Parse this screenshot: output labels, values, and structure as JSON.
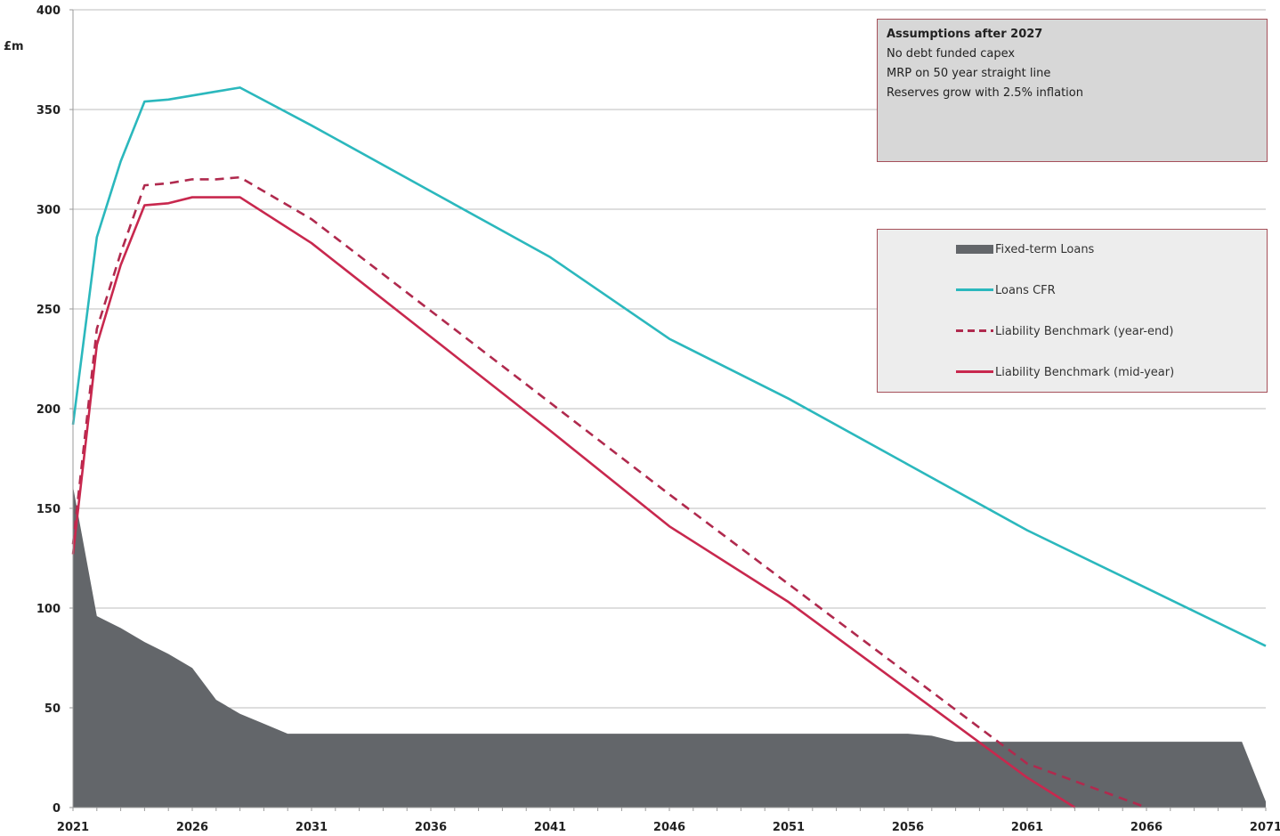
{
  "chart_data": {
    "type": "line",
    "ylabel": "£m",
    "ylim": [
      0,
      400
    ],
    "xlim": [
      2021,
      2071
    ],
    "y_ticks": [
      "0",
      "50",
      "100",
      "150",
      "200",
      "250",
      "300",
      "350",
      "400"
    ],
    "x_ticks": [
      "2021",
      "2026",
      "2031",
      "2036",
      "2041",
      "2046",
      "2051",
      "2056",
      "2061",
      "2066",
      "2071"
    ],
    "grid": true,
    "legend_position": "right",
    "series": [
      {
        "name": "Fixed-term Loans",
        "kind": "area",
        "color": "#63666a",
        "x": [
          2021,
          2022,
          2023,
          2024,
          2025,
          2026,
          2027,
          2028,
          2029,
          2030,
          2031,
          2035,
          2040,
          2045,
          2050,
          2056,
          2057,
          2058,
          2060,
          2065,
          2069,
          2070,
          2071
        ],
        "y": [
          161,
          96,
          90,
          83,
          77,
          70,
          54,
          47,
          42,
          37,
          37,
          37,
          37,
          37,
          37,
          37,
          36,
          33,
          33,
          33,
          33,
          33,
          3
        ]
      },
      {
        "name": "Loans CFR",
        "kind": "line",
        "color": "#2bb8bd",
        "x": [
          2021,
          2022,
          2023,
          2024,
          2025,
          2026,
          2027,
          2028,
          2031,
          2036,
          2041,
          2046,
          2051,
          2056,
          2061,
          2066,
          2071
        ],
        "y": [
          192,
          286,
          324,
          354,
          355,
          357,
          359,
          361,
          342,
          309,
          276,
          235,
          205,
          172,
          139,
          110,
          81
        ]
      },
      {
        "name": "Liability Benchmark (year-end)",
        "kind": "dashed-line",
        "color": "#b02a4e",
        "x": [
          2021,
          2022,
          2023,
          2024,
          2025,
          2026,
          2027,
          2028,
          2031,
          2036,
          2041,
          2046,
          2051,
          2056,
          2061,
          2066
        ],
        "y": [
          132,
          240,
          278,
          312,
          313,
          315,
          315,
          316,
          295,
          249,
          203,
          157,
          112,
          67,
          22,
          0
        ]
      },
      {
        "name": "Liability Benchmark (mid-year)",
        "kind": "line",
        "color": "#c8284e",
        "x": [
          2021,
          2022,
          2023,
          2024,
          2025,
          2026,
          2027,
          2028,
          2031,
          2036,
          2041,
          2046,
          2051,
          2056,
          2061,
          2063
        ],
        "y": [
          127,
          232,
          272,
          302,
          303,
          306,
          306,
          306,
          283,
          236,
          189,
          141,
          103,
          59,
          15,
          0
        ]
      }
    ]
  },
  "assumptions": {
    "title": "Assumptions after 2027",
    "lines": [
      "No debt funded capex",
      "MRP on 50 year straight line",
      "Reserves grow with 2.5% inflation"
    ]
  }
}
